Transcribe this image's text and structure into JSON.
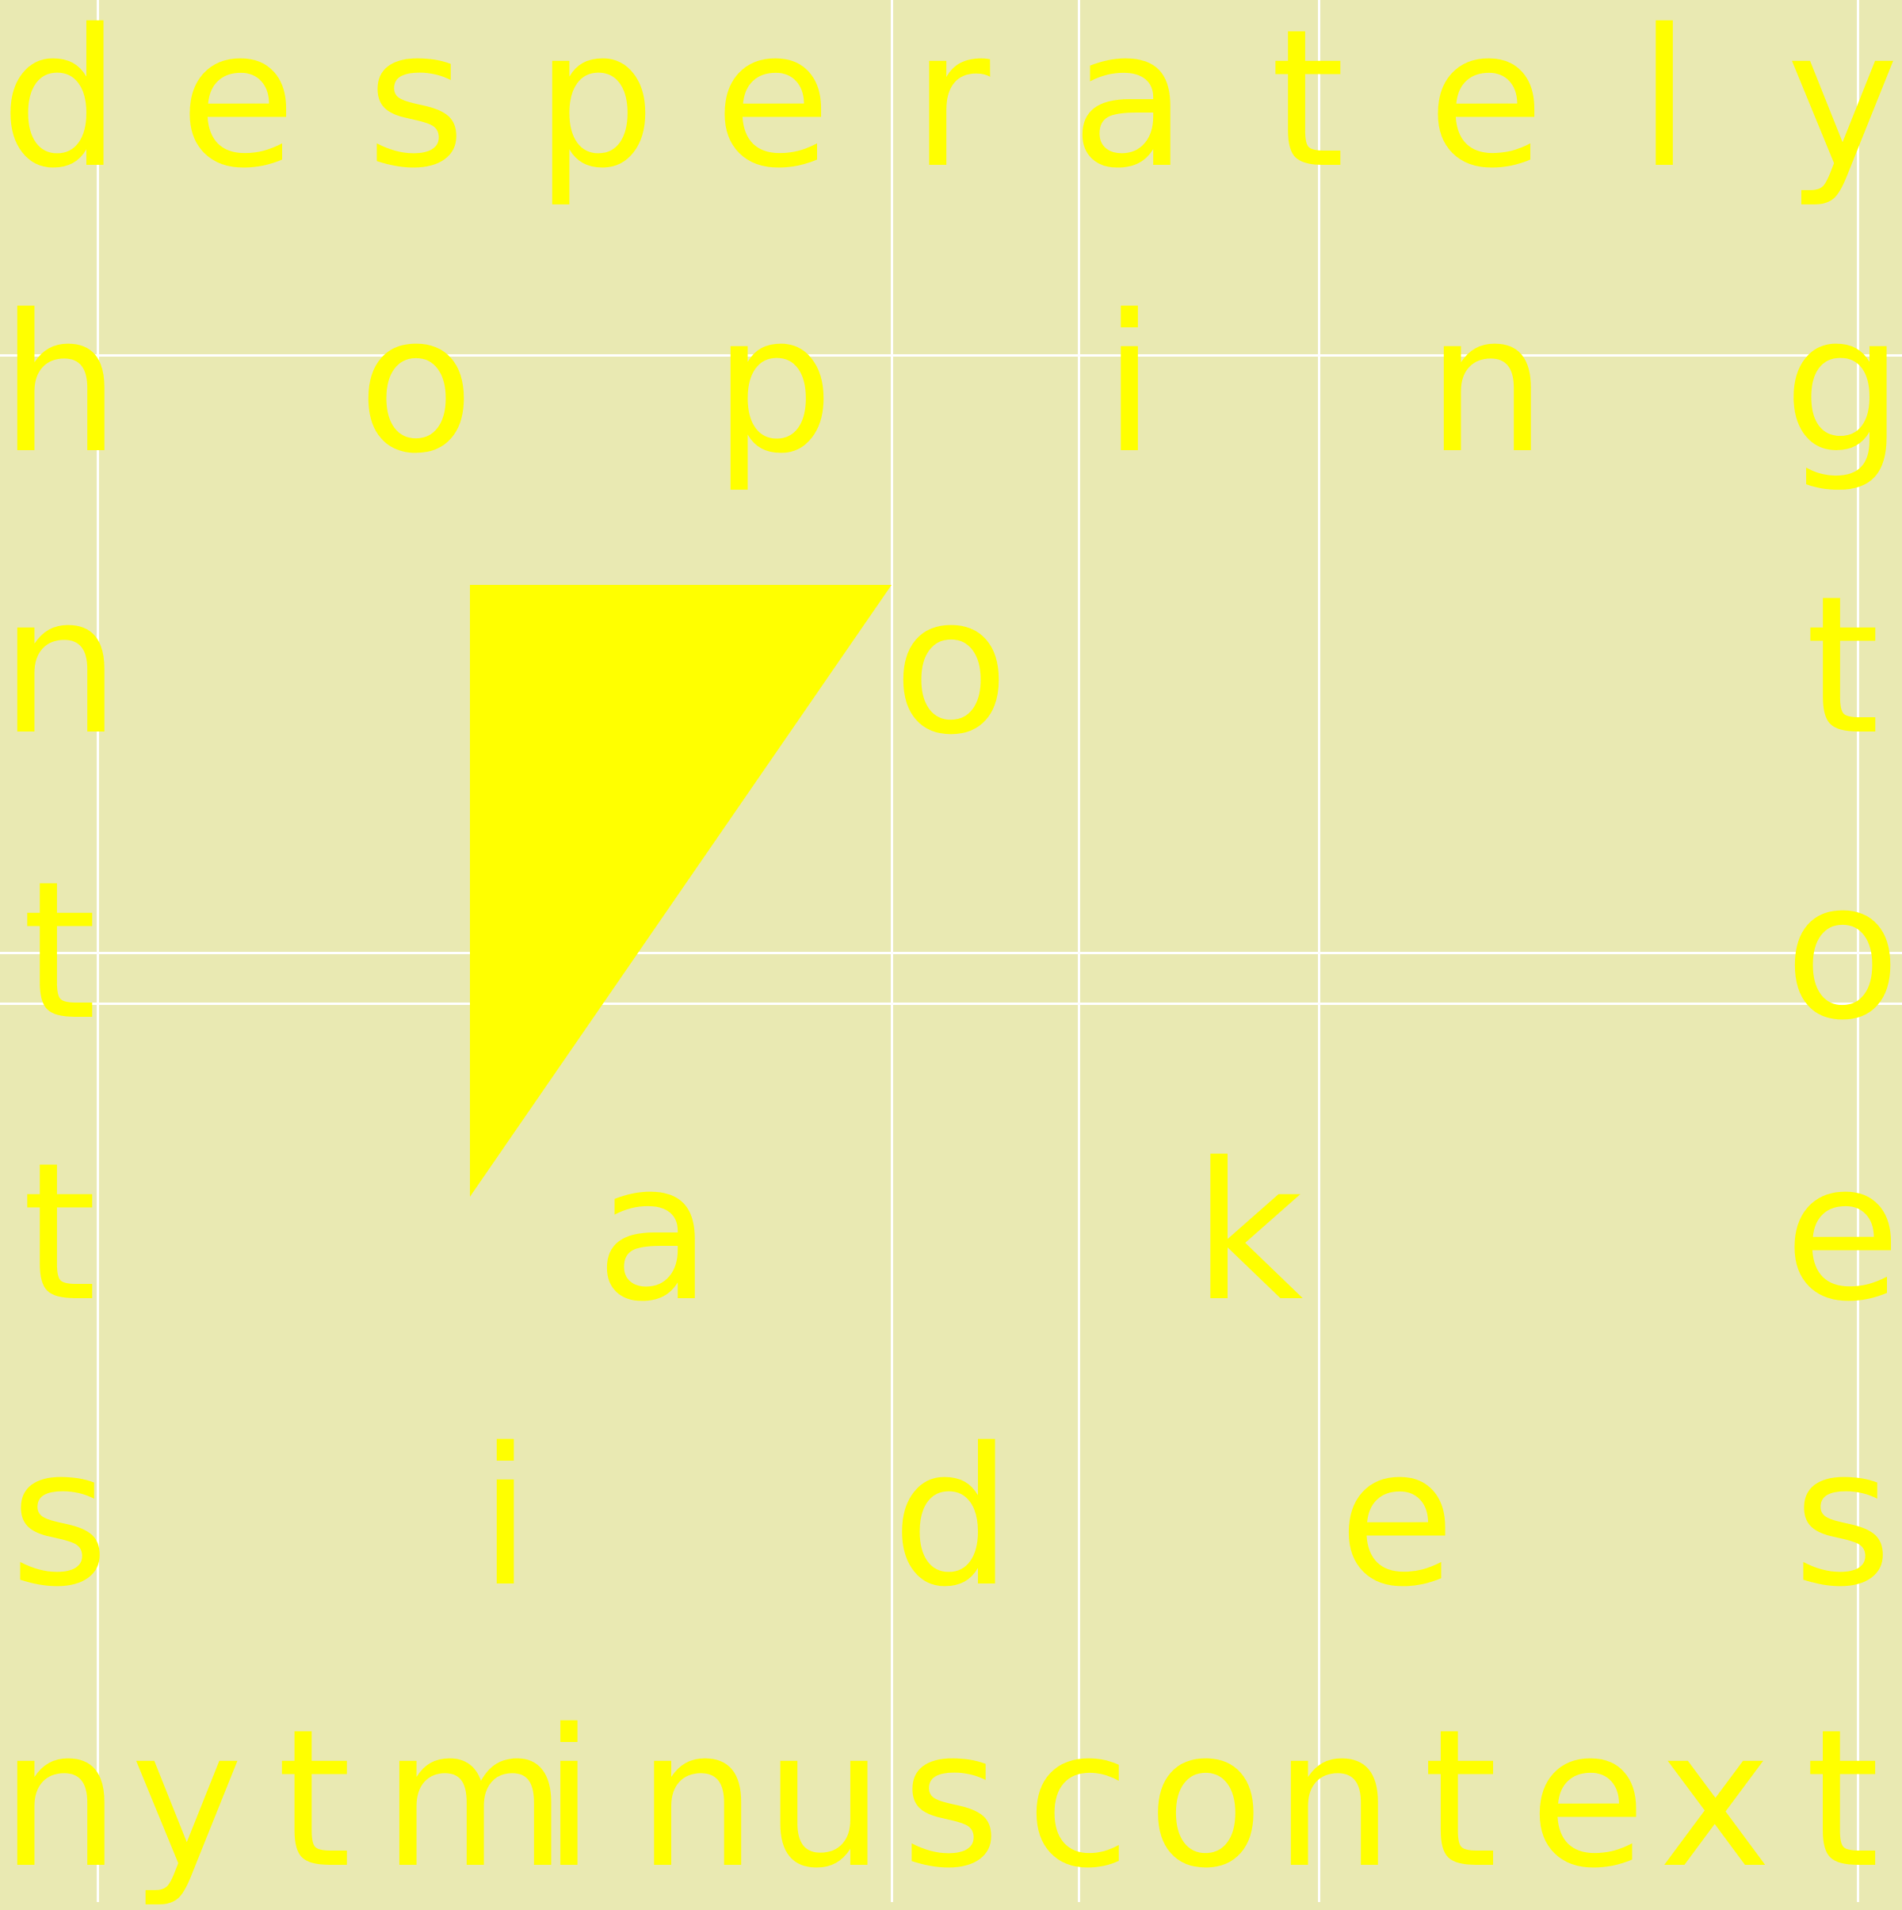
{
  "colors": {
    "background": "#e9e9b2",
    "text": "#ffff00",
    "grid": "#ffffff",
    "shape": "#ffff00"
  },
  "rows": [
    [
      "d",
      "e",
      "s",
      "p",
      "e",
      "r",
      "a",
      "t",
      "e",
      "l",
      "y"
    ],
    [
      "h",
      "o",
      "p",
      "i",
      "n",
      "g"
    ],
    [
      "n",
      "o",
      "t"
    ],
    [
      "t",
      "o"
    ],
    [
      "t",
      "a",
      "k",
      "e"
    ],
    [
      "s",
      "i",
      "d",
      "e",
      "s"
    ],
    [
      "n",
      "y",
      "t",
      "m",
      "i",
      "n",
      "u",
      "s",
      "c",
      "o",
      "n",
      "t",
      "e",
      "x",
      "t"
    ]
  ]
}
